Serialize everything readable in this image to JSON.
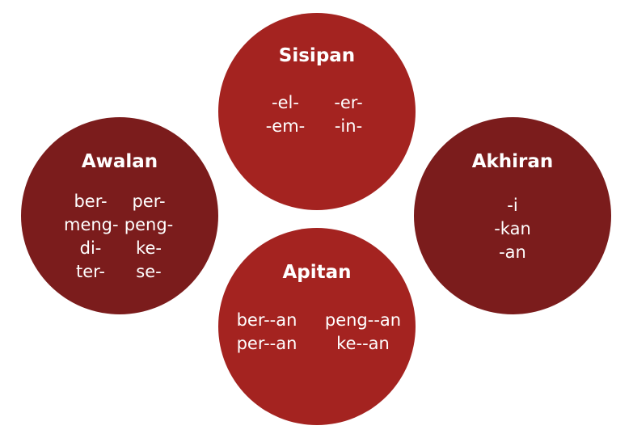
{
  "awalan": {
    "title": "Awalan",
    "rows": [
      [
        "ber-",
        "per-"
      ],
      [
        "meng-",
        "peng-"
      ],
      [
        "di-",
        "ke-"
      ],
      [
        "ter-",
        "se-"
      ]
    ]
  },
  "sisipan": {
    "title": "Sisipan",
    "rows": [
      [
        "-el-",
        "-er-"
      ],
      [
        "-em-",
        "-in-"
      ]
    ]
  },
  "akhiran": {
    "title": "Akhiran",
    "rows": [
      [
        "-i"
      ],
      [
        "-kan"
      ],
      [
        "-an"
      ]
    ]
  },
  "apitan": {
    "title": "Apitan",
    "rows": [
      [
        "ber--an",
        "peng--an"
      ],
      [
        "per--an",
        "ke--an"
      ]
    ]
  },
  "colors": {
    "dark_red": "#7b1c1c",
    "red": "#a42320",
    "text": "#ffffff"
  }
}
